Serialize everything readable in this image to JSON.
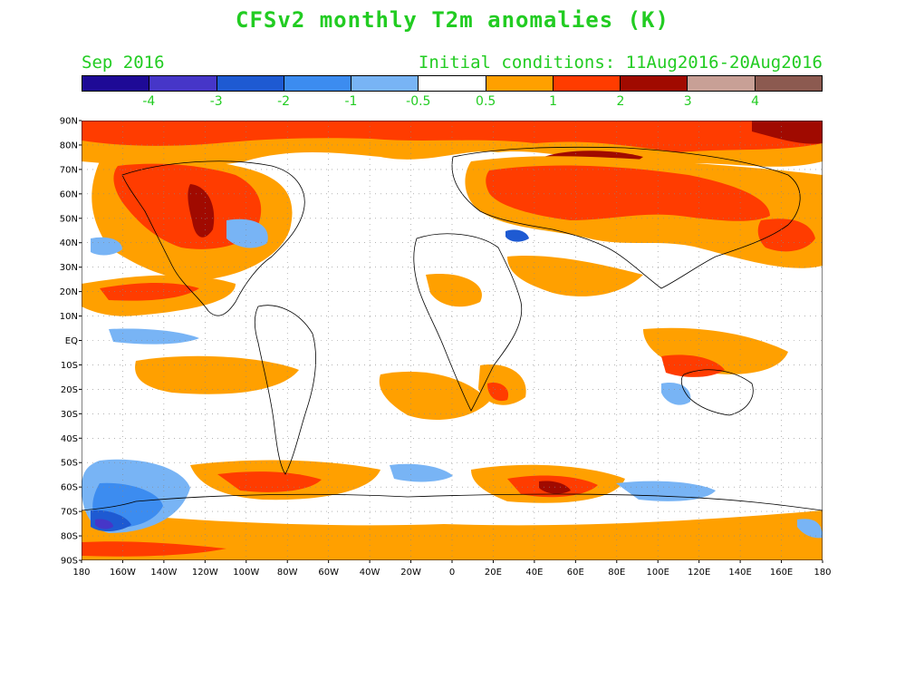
{
  "title": "CFSv2 monthly T2m anomalies (K)",
  "valid_month": "Sep 2016",
  "initial_conditions": "Initial conditions: 11Aug2016-20Aug2016",
  "colors": {
    "text": "#22cc22",
    "scale": [
      "#1e0a96",
      "#4636c8",
      "#1e5ad2",
      "#3c8cf0",
      "#78b4f5",
      "#ffffff",
      "#ffa000",
      "#ff3c00",
      "#a00a00",
      "#c8a096",
      "#8c5a50"
    ]
  },
  "colorbar_labels": [
    "-4",
    "-3",
    "-2",
    "-1",
    "-0.5",
    "0.5",
    "1",
    "2",
    "3",
    "4"
  ],
  "lat_labels": [
    "90N",
    "80N",
    "70N",
    "60N",
    "50N",
    "40N",
    "30N",
    "20N",
    "10N",
    "EQ",
    "10S",
    "20S",
    "30S",
    "40S",
    "50S",
    "60S",
    "70S",
    "80S",
    "90S"
  ],
  "lon_labels": [
    "180",
    "160W",
    "140W",
    "120W",
    "100W",
    "80W",
    "60W",
    "40W",
    "20W",
    "0",
    "20E",
    "40E",
    "60E",
    "80E",
    "100E",
    "120E",
    "140E",
    "160E",
    "180"
  ]
}
